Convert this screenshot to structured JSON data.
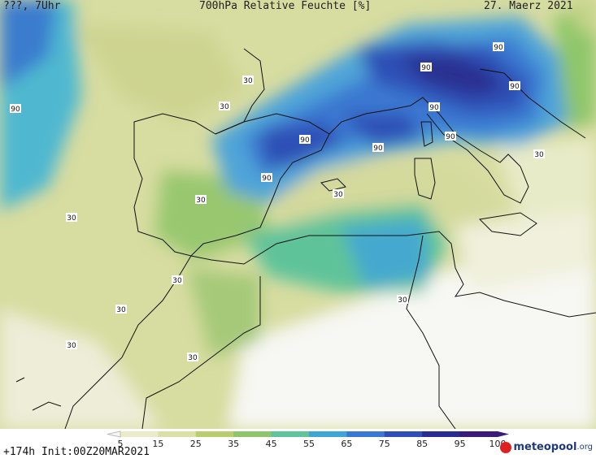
{
  "header": {
    "left": "???, 7Uhr",
    "title": "700hPa Relative Feuchte [%]",
    "date": "27. Maerz 2021"
  },
  "footer": {
    "run": "+174h Init:00Z20MAR2021"
  },
  "logo": {
    "text": "meteopool",
    "suffix": ".org"
  },
  "legend": {
    "ticks": [
      "5",
      "15",
      "25",
      "35",
      "45",
      "55",
      "65",
      "75",
      "85",
      "95",
      "100"
    ],
    "colors": [
      "#f7f7f5",
      "#ebebc9",
      "#dcdfa6",
      "#b9cd6e",
      "#8fc66b",
      "#5fc49a",
      "#3fa5d5",
      "#3a78d1",
      "#2f4fb6",
      "#2a2d8f",
      "#3b1b7a"
    ]
  },
  "contour_labels": [
    "90",
    "90",
    "90",
    "90",
    "90",
    "90",
    "90",
    "90",
    "90",
    "90",
    "30",
    "30",
    "30",
    "30",
    "30",
    "30",
    "30",
    "30",
    "30",
    "30",
    "30"
  ]
}
